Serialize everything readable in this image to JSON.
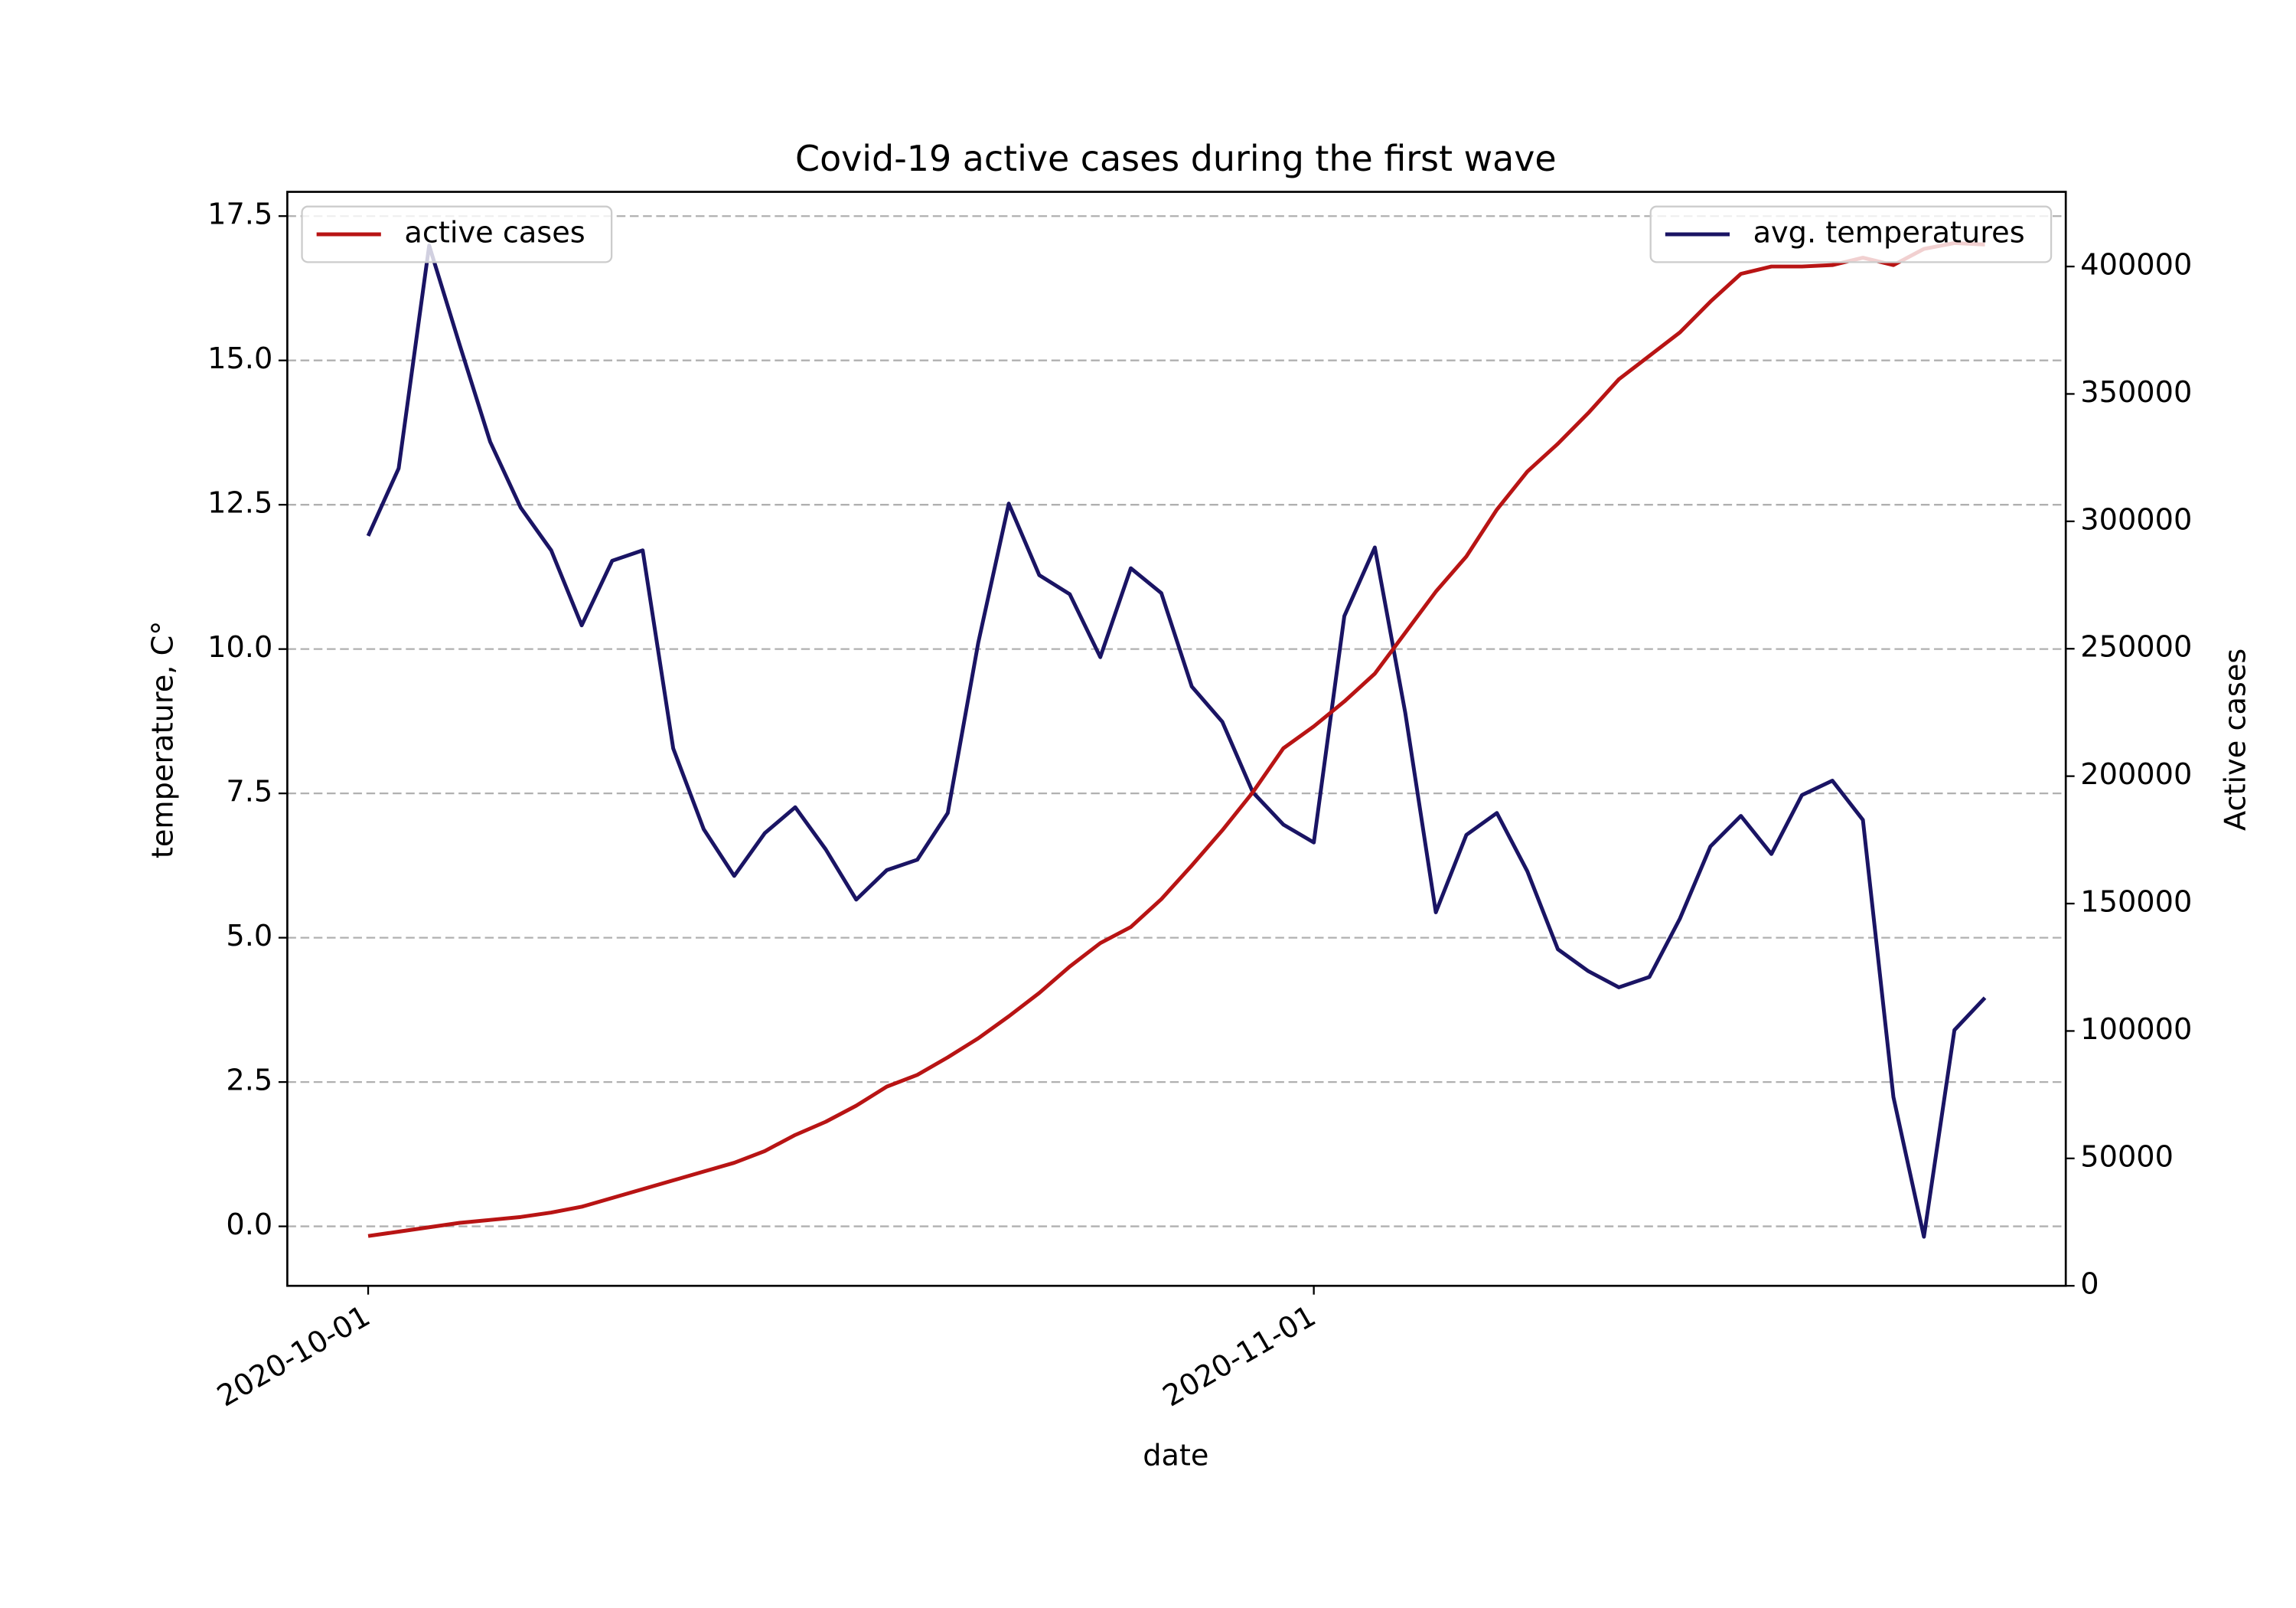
{
  "chart_data": {
    "type": "line",
    "title": "Covid-19 active cases during the first wave",
    "xlabel": "date",
    "ylabel": "temperature, C°",
    "y2label": "Active cases",
    "x": [
      "2020-10-01",
      "2020-10-02",
      "2020-10-03",
      "2020-10-04",
      "2020-10-05",
      "2020-10-06",
      "2020-10-07",
      "2020-10-08",
      "2020-10-09",
      "2020-10-10",
      "2020-10-11",
      "2020-10-12",
      "2020-10-13",
      "2020-10-14",
      "2020-10-15",
      "2020-10-16",
      "2020-10-17",
      "2020-10-18",
      "2020-10-19",
      "2020-10-20",
      "2020-10-21",
      "2020-10-22",
      "2020-10-23",
      "2020-10-24",
      "2020-10-25",
      "2020-10-26",
      "2020-10-27",
      "2020-10-28",
      "2020-10-29",
      "2020-10-30",
      "2020-10-31",
      "2020-11-01",
      "2020-11-02",
      "2020-11-03",
      "2020-11-04",
      "2020-11-05",
      "2020-11-06",
      "2020-11-07",
      "2020-11-08",
      "2020-11-09",
      "2020-11-10",
      "2020-11-11",
      "2020-11-12",
      "2020-11-13",
      "2020-11-14",
      "2020-11-15",
      "2020-11-16",
      "2020-11-17",
      "2020-11-18",
      "2020-11-19",
      "2020-11-20",
      "2020-11-21",
      "2020-11-22",
      "2020-11-23"
    ],
    "xlim": [
      "2020-09-28T08:24:00Z",
      "2020-11-25T15:36:00Z"
    ],
    "xticks": [
      "2020-10-01",
      "2020-11-01"
    ],
    "ylim": [
      -1.03,
      17.92
    ],
    "yticks": [
      {
        "value": 0,
        "label": "0.0"
      },
      2.5,
      {
        "value": 5,
        "label": "5.0"
      },
      7.5,
      {
        "value": 10,
        "label": "10.0"
      },
      12.5,
      {
        "value": 15,
        "label": "15.0"
      },
      17.5
    ],
    "y2lim": [
      0,
      429300
    ],
    "y2ticks": [
      0,
      50000,
      100000,
      150000,
      200000,
      250000,
      300000,
      350000,
      400000
    ],
    "grid": true,
    "series": [
      {
        "name": "avg. temperatures",
        "color": "#1a1464",
        "axis": "y",
        "legend": "upper right",
        "values": [
          11.96,
          13.13,
          16.99,
          15.27,
          13.59,
          12.45,
          11.71,
          10.41,
          11.53,
          11.71,
          8.28,
          6.88,
          6.07,
          6.81,
          7.26,
          6.53,
          5.66,
          6.17,
          6.35,
          7.16,
          10.11,
          12.52,
          11.28,
          10.95,
          9.86,
          11.4,
          10.97,
          9.35,
          8.74,
          7.52,
          6.96,
          6.65,
          10.57,
          11.76,
          8.89,
          5.44,
          6.78,
          7.16,
          6.15,
          4.8,
          4.42,
          4.14,
          4.32,
          5.33,
          6.58,
          7.11,
          6.45,
          7.47,
          7.72,
          7.04,
          2.24,
          -0.18,
          3.4,
          3.96
        ]
      },
      {
        "name": "active cases",
        "color": "#b81414",
        "axis": "y2",
        "legend": "upper left",
        "values": [
          19540,
          21260,
          22990,
          24710,
          25860,
          27010,
          28740,
          31030,
          34480,
          37930,
          41380,
          44830,
          48280,
          52870,
          59200,
          64370,
          70690,
          78160,
          82760,
          89660,
          97130,
          105750,
          114940,
          125290,
          134480,
          140800,
          151720,
          164940,
          178740,
          193680,
          210920,
          219540,
          229310,
          240230,
          256320,
          272410,
          286210,
          304600,
          319540,
          330460,
          342530,
          355750,
          364940,
          374140,
          386210,
          397130,
          400000,
          400000,
          400570,
          403450,
          400570,
          406900,
          409200,
          408620
        ]
      }
    ]
  }
}
